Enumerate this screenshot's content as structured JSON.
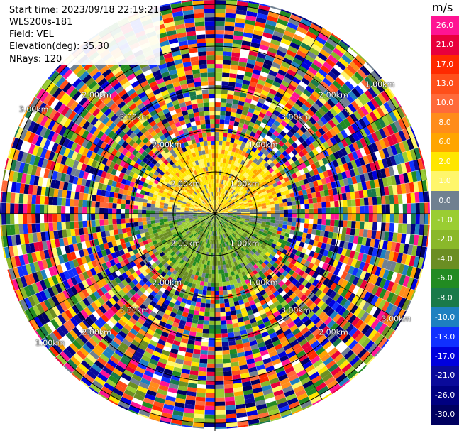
{
  "header": {
    "start_time": "Start time: 2023/09/18 22:19:21",
    "instrument": "WLS200s-181",
    "field": "Field: VEL",
    "elevation": "Elevation(deg): 35.30",
    "nrays": "NRays: 120"
  },
  "chart_data": {
    "type": "ppi",
    "field": "VEL",
    "units": "m/s",
    "n_rays": 120,
    "range_rings_km": [
      "1.00km",
      "2.00km",
      "3.00km"
    ],
    "colorbar": {
      "ticks": [
        "26.0",
        "21.0",
        "17.0",
        "13.0",
        "10.0",
        "8.0",
        "6.0",
        "2.0",
        "1.0",
        "0.0",
        "-1.0",
        "-2.0",
        "-4.0",
        "-6.0",
        "-8.0",
        "-10.0",
        "-13.0",
        "-17.0",
        "-21.0",
        "-26.0",
        "-30.0"
      ],
      "colors": [
        "#ff1493",
        "#e8003c",
        "#ff2a00",
        "#ff4f1a",
        "#ff6a3a",
        "#ff8c1a",
        "#ffa500",
        "#ffe600",
        "#fff66b",
        "#708090",
        "#9acd32",
        "#8ab82a",
        "#6b8e23",
        "#228b22",
        "#1a7a4a",
        "#1e80c0",
        "#1030ff",
        "#0000dd",
        "#0a0a9a",
        "#000080",
        "#000060"
      ]
    },
    "pattern": "inner ~1.7km: positive velocities (yellow/orange) to the north, negative (olive/green) to the south, gray near zero on east-west line; outer gates noisy mixed colors"
  }
}
